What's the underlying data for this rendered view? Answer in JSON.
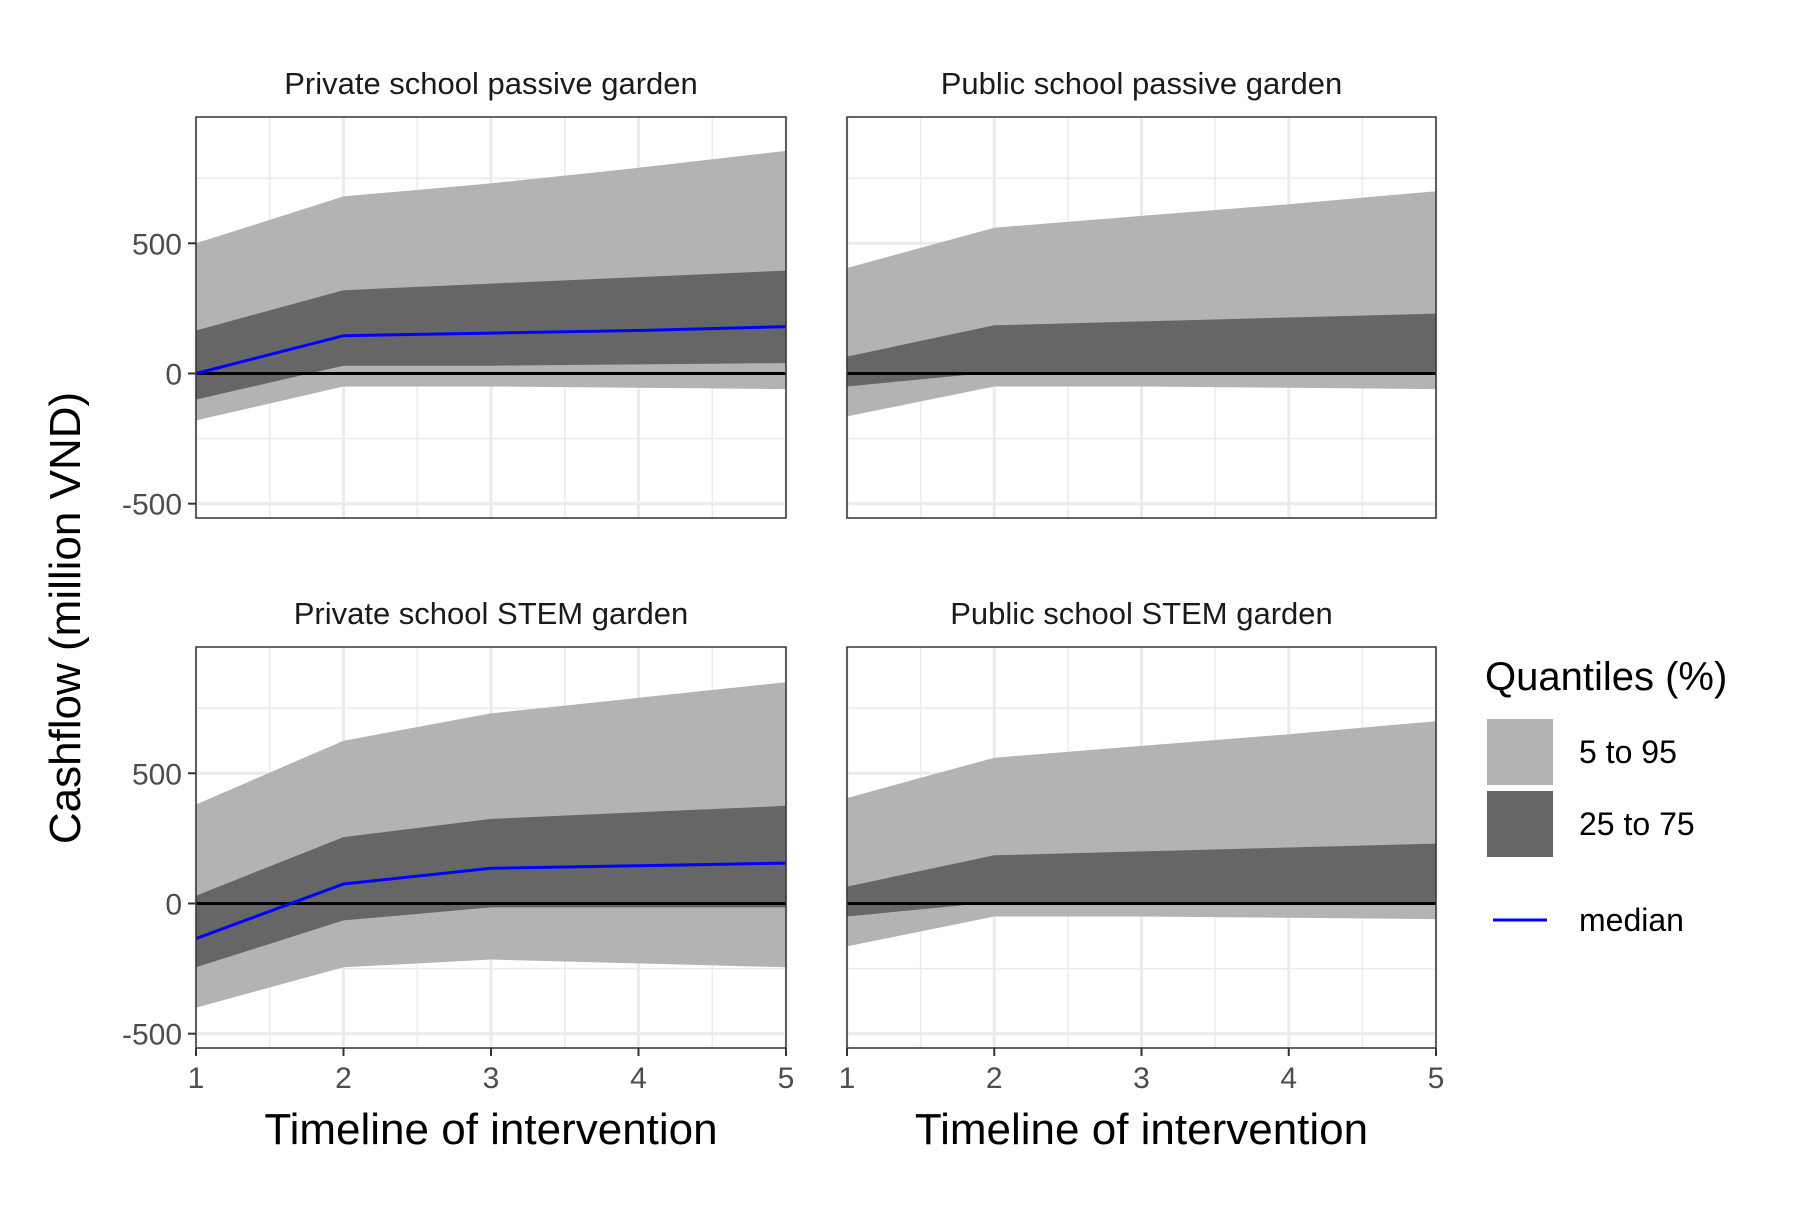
{
  "chart_data": {
    "type": "area",
    "y_axis_label": "Cashflow (million VND)",
    "x_axis_label": "Timeline of intervention",
    "x_ticks": [
      1,
      2,
      3,
      4,
      5
    ],
    "y_ticks": [
      -500,
      0,
      500
    ],
    "xlim": [
      1,
      5
    ],
    "ylim": [
      -555,
      985
    ],
    "grid": true,
    "colors": {
      "band_5_95": "#b3b3b3",
      "band_25_75": "#666666",
      "median": "#0000ff",
      "zero_line": "#000000",
      "grid": "#ebebeb"
    },
    "legend": {
      "title": "Quantiles (%)",
      "position": "right",
      "entries": [
        {
          "key": "band_5_95",
          "label": "5 to 95"
        },
        {
          "key": "band_25_75",
          "label": "25 to 75"
        },
        {
          "key": "median",
          "label": "median"
        }
      ]
    },
    "panels": [
      {
        "title": "Private school passive garden",
        "x": [
          1,
          2,
          3,
          4,
          5
        ],
        "q05": [
          -180,
          -50,
          -50,
          -55,
          -60
        ],
        "q25": [
          -100,
          30,
          30,
          35,
          40
        ],
        "q75": [
          165,
          320,
          345,
          370,
          395
        ],
        "q95": [
          500,
          680,
          730,
          790,
          855
        ],
        "median": [
          0,
          145,
          155,
          165,
          180
        ]
      },
      {
        "title": "Public school passive garden",
        "x": [
          1,
          2,
          3,
          4,
          5
        ],
        "q05": [
          -165,
          -50,
          -50,
          -55,
          -60
        ],
        "q25": [
          -50,
          5,
          5,
          5,
          5
        ],
        "q75": [
          65,
          185,
          200,
          215,
          230
        ],
        "q95": [
          405,
          560,
          605,
          650,
          700
        ],
        "median": null
      },
      {
        "title": "Private school STEM garden",
        "x": [
          1,
          2,
          3,
          4,
          5
        ],
        "q05": [
          -400,
          -245,
          -215,
          -230,
          -245
        ],
        "q25": [
          -245,
          -65,
          -15,
          -15,
          -15
        ],
        "q75": [
          30,
          255,
          325,
          350,
          375
        ],
        "q95": [
          380,
          625,
          730,
          790,
          850
        ],
        "median": [
          -135,
          75,
          135,
          145,
          155
        ]
      },
      {
        "title": "Public school STEM garden",
        "x": [
          1,
          2,
          3,
          4,
          5
        ],
        "q05": [
          -165,
          -50,
          -50,
          -55,
          -60
        ],
        "q25": [
          -50,
          5,
          5,
          5,
          5
        ],
        "q75": [
          65,
          185,
          200,
          215,
          230
        ],
        "q95": [
          405,
          560,
          605,
          650,
          700
        ],
        "median": null
      }
    ]
  }
}
